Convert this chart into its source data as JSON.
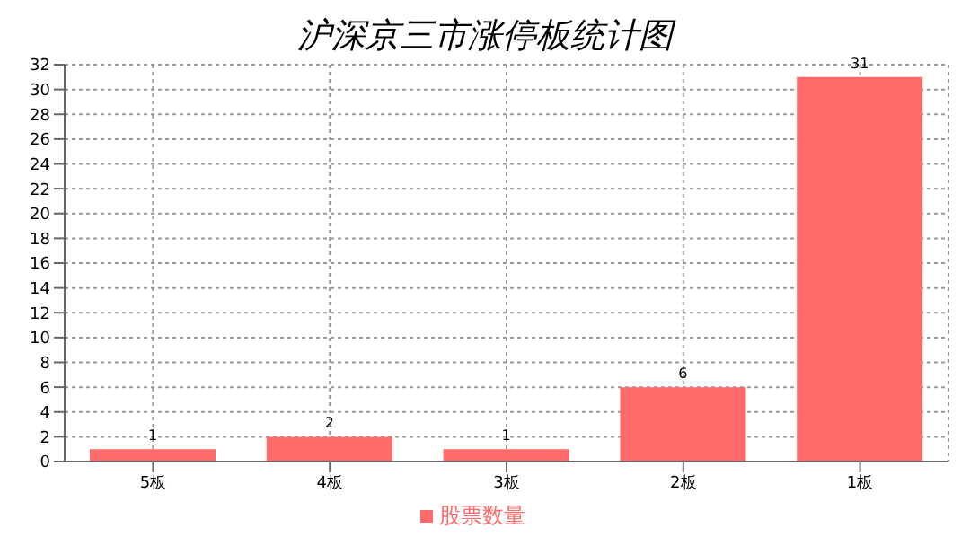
{
  "chart_data": {
    "type": "bar",
    "title": "沪深京三市涨停板统计图",
    "categories": [
      "5板",
      "4板",
      "3板",
      "2板",
      "1板"
    ],
    "series": [
      {
        "name": "股票数量",
        "color": "#ff6a6a",
        "values": [
          1,
          2,
          1,
          6,
          31
        ]
      }
    ],
    "ylim": [
      0,
      32
    ],
    "yticks": [
      0,
      2,
      4,
      6,
      8,
      10,
      12,
      14,
      16,
      18,
      20,
      22,
      24,
      26,
      28,
      30,
      32
    ],
    "grid": true,
    "legend": "bottom",
    "data_labels": true
  }
}
